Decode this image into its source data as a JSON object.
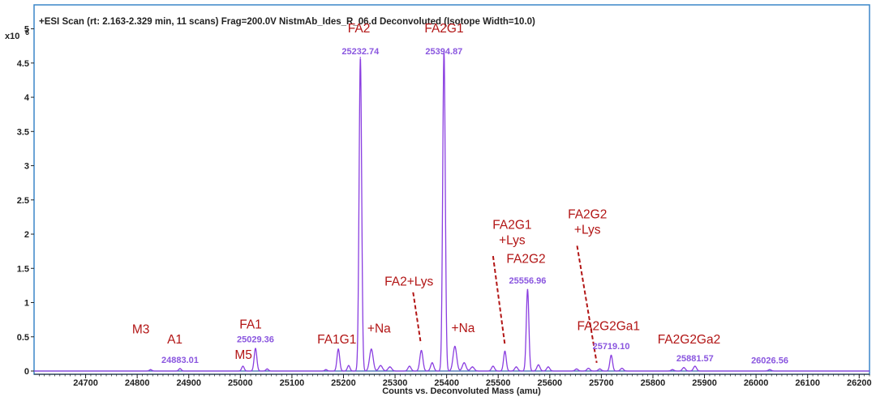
{
  "colors": {
    "frame": "#3a86c8",
    "trace": "#8a3ee0",
    "mass_label": "#8a56df",
    "annotation": "#b21515",
    "axis": "#222222",
    "baseline": "#3a66b0"
  },
  "chart_data": {
    "type": "line",
    "title": "+ESI Scan (rt: 2.163-2.329 min, 11 scans) Frag=200.0V NistmAb_Ides_R_06.d  Deconvoluted (Isotope Width=10.0)",
    "xlabel": "Counts vs. Deconvoluted Mass (amu)",
    "ylabel": "",
    "y_multiplier": "x10",
    "y_exponent": "6",
    "xlim": [
      24600,
      26220
    ],
    "ylim": [
      0,
      5.35
    ],
    "xticks": [
      24700,
      24800,
      24900,
      25000,
      25100,
      25200,
      25300,
      25400,
      25500,
      25600,
      25700,
      25800,
      25900,
      26000,
      26100,
      26200
    ],
    "xtick_labels": [
      "24700",
      "24800",
      "24900",
      "25000",
      "25100",
      "25200",
      "25300",
      "25400",
      "25500",
      "25600",
      "25700",
      "25800",
      "25900",
      "26000",
      "26100",
      "26200"
    ],
    "yticks": [
      0,
      0.5,
      1,
      1.5,
      2,
      2.5,
      3,
      3.5,
      4,
      4.5,
      5
    ],
    "ytick_labels": [
      "0",
      "0.5",
      "1",
      "1.5",
      "2",
      "2.5",
      "3",
      "3.5",
      "4",
      "4.5",
      "5"
    ],
    "grid": false,
    "peaks": [
      {
        "x": 24826,
        "y": 0.02,
        "w": 2.5
      },
      {
        "x": 24883.01,
        "y": 0.035,
        "w": 2.5
      },
      {
        "x": 25005,
        "y": 0.07,
        "w": 2.5
      },
      {
        "x": 25029.36,
        "y": 0.33,
        "w": 2.6
      },
      {
        "x": 25052,
        "y": 0.03,
        "w": 2.5
      },
      {
        "x": 25166,
        "y": 0.02,
        "w": 2.5
      },
      {
        "x": 25190,
        "y": 0.32,
        "w": 2.6
      },
      {
        "x": 25210,
        "y": 0.08,
        "w": 2.5
      },
      {
        "x": 25232.74,
        "y": 4.58,
        "w": 2.5
      },
      {
        "x": 25254,
        "y": 0.32,
        "w": 3.5
      },
      {
        "x": 25272,
        "y": 0.08,
        "w": 3.5
      },
      {
        "x": 25290,
        "y": 0.06,
        "w": 3.5
      },
      {
        "x": 25328,
        "y": 0.07,
        "w": 3.0
      },
      {
        "x": 25351,
        "y": 0.3,
        "w": 3.0
      },
      {
        "x": 25372,
        "y": 0.12,
        "w": 3.0
      },
      {
        "x": 25394.87,
        "y": 4.68,
        "w": 2.5
      },
      {
        "x": 25416,
        "y": 0.36,
        "w": 3.5
      },
      {
        "x": 25434,
        "y": 0.12,
        "w": 3.5
      },
      {
        "x": 25450,
        "y": 0.06,
        "w": 3.5
      },
      {
        "x": 25490,
        "y": 0.07,
        "w": 3.0
      },
      {
        "x": 25513,
        "y": 0.29,
        "w": 2.6
      },
      {
        "x": 25535,
        "y": 0.06,
        "w": 3.0
      },
      {
        "x": 25556.96,
        "y": 1.19,
        "w": 2.5
      },
      {
        "x": 25578,
        "y": 0.09,
        "w": 3.0
      },
      {
        "x": 25597,
        "y": 0.06,
        "w": 3.0
      },
      {
        "x": 25652,
        "y": 0.03,
        "w": 3.0
      },
      {
        "x": 25675,
        "y": 0.04,
        "w": 3.0
      },
      {
        "x": 25697,
        "y": 0.03,
        "w": 3.0
      },
      {
        "x": 25719.1,
        "y": 0.23,
        "w": 2.6
      },
      {
        "x": 25740,
        "y": 0.04,
        "w": 3.0
      },
      {
        "x": 25838,
        "y": 0.02,
        "w": 3.0
      },
      {
        "x": 25860,
        "y": 0.05,
        "w": 3.0
      },
      {
        "x": 25881.57,
        "y": 0.07,
        "w": 3.0
      },
      {
        "x": 26026.56,
        "y": 0.02,
        "w": 3.0
      }
    ],
    "mass_labels": [
      {
        "text": "24883.01",
        "x": 24883.01,
        "y": 0.12
      },
      {
        "text": "25029.36",
        "x": 25029.36,
        "y": 0.42
      },
      {
        "text": "25232.74",
        "x": 25232.74,
        "y": 4.63
      },
      {
        "text": "25394.87",
        "x": 25394.87,
        "y": 4.63
      },
      {
        "text": "25556.96",
        "x": 25556.96,
        "y": 1.28
      },
      {
        "text": "25719.10",
        "x": 25719.1,
        "y": 0.32
      },
      {
        "text": "25881.57",
        "x": 25881.57,
        "y": 0.14
      },
      {
        "text": "26026.56",
        "x": 26026.56,
        "y": 0.11
      }
    ],
    "glycan_labels": [
      {
        "lines": [
          "M3"
        ],
        "x": 24807,
        "y": 0.55
      },
      {
        "lines": [
          "A1"
        ],
        "x": 24873,
        "y": 0.4
      },
      {
        "lines": [
          "FA1"
        ],
        "x": 25020,
        "y": 0.62
      },
      {
        "lines": [
          "M5"
        ],
        "x": 25006,
        "y": 0.18
      },
      {
        "lines": [
          "FA1G1"
        ],
        "x": 25187,
        "y": 0.4
      },
      {
        "lines": [
          "FA2"
        ],
        "x": 25230,
        "y": 4.95
      },
      {
        "lines": [
          "+Na"
        ],
        "x": 25269,
        "y": 0.56
      },
      {
        "lines": [
          "FA2G1"
        ],
        "x": 25395,
        "y": 4.95
      },
      {
        "lines": [
          "+Na"
        ],
        "x": 25432,
        "y": 0.57
      },
      {
        "lines": [
          "FA2+Lys"
        ],
        "x": 25327,
        "y": 1.25
      },
      {
        "lines": [
          "FA2G1",
          "+Lys"
        ],
        "x": 25527,
        "y": 2.08
      },
      {
        "lines": [
          "FA2G2"
        ],
        "x": 25554,
        "y": 1.58
      },
      {
        "lines": [
          "FA2G2",
          "+Lys"
        ],
        "x": 25673,
        "y": 2.23
      },
      {
        "lines": [
          "FA2G2Ga1"
        ],
        "x": 25714,
        "y": 0.6
      },
      {
        "lines": [
          "FA2G2Ga2"
        ],
        "x": 25870,
        "y": 0.4
      }
    ],
    "dashed_arrows": [
      {
        "x1": 25335,
        "y1": 1.15,
        "x2": 25350,
        "y2": 0.4
      },
      {
        "x1": 25490,
        "y1": 1.68,
        "x2": 25513,
        "y2": 0.38
      },
      {
        "x1": 25653,
        "y1": 1.83,
        "x2": 25691,
        "y2": 0.12
      }
    ]
  }
}
